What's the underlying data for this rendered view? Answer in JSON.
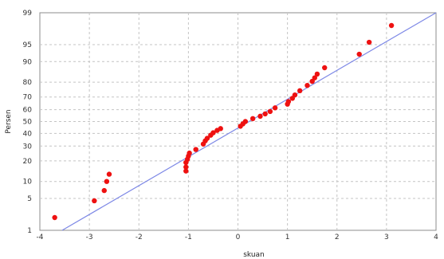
{
  "chart_data": {
    "type": "scatter",
    "title": "",
    "xlabel": "skuan",
    "ylabel": "Persen",
    "xlim": [
      -4,
      4
    ],
    "x_ticks": [
      -4,
      -3,
      -2,
      -1,
      0,
      1,
      2,
      3,
      4
    ],
    "y_ticks": [
      1,
      5,
      10,
      20,
      30,
      40,
      50,
      60,
      70,
      80,
      90,
      95,
      99
    ],
    "y_scale": "normal-probability",
    "grid": true,
    "grid_style": "dashed",
    "legend": "none",
    "point_color": "#ee1111",
    "line_color": "#7d88e6",
    "fit_line": {
      "x": [
        -3.55,
        4.0
      ],
      "y": [
        1,
        99
      ]
    },
    "series": [
      {
        "points": [
          [
            -3.7,
            2.0
          ],
          [
            -2.9,
            4.5
          ],
          [
            -2.7,
            7.0
          ],
          [
            -2.65,
            10.0
          ],
          [
            -2.6,
            13.0
          ],
          [
            -1.05,
            14.5
          ],
          [
            -1.05,
            16.5
          ],
          [
            -1.05,
            19.0
          ],
          [
            -1.02,
            21.0
          ],
          [
            -1.0,
            23.0
          ],
          [
            -0.98,
            25.0
          ],
          [
            -0.85,
            27.5
          ],
          [
            -0.7,
            31.5
          ],
          [
            -0.66,
            34.0
          ],
          [
            -0.62,
            36.0
          ],
          [
            -0.55,
            38.5
          ],
          [
            -0.5,
            40.5
          ],
          [
            -0.42,
            42.5
          ],
          [
            -0.35,
            44.0
          ],
          [
            0.05,
            46.0
          ],
          [
            0.1,
            48.0
          ],
          [
            0.15,
            50.0
          ],
          [
            0.3,
            52.5
          ],
          [
            0.45,
            54.5
          ],
          [
            0.55,
            56.5
          ],
          [
            0.65,
            58.5
          ],
          [
            0.75,
            61.5
          ],
          [
            1.0,
            64.5
          ],
          [
            1.02,
            66.5
          ],
          [
            1.1,
            69.0
          ],
          [
            1.15,
            71.5
          ],
          [
            1.25,
            74.5
          ],
          [
            1.4,
            78.0
          ],
          [
            1.5,
            80.5
          ],
          [
            1.55,
            82.5
          ],
          [
            1.6,
            84.5
          ],
          [
            1.75,
            87.5
          ],
          [
            2.45,
            92.5
          ],
          [
            2.65,
            95.5
          ],
          [
            3.1,
            98.0
          ]
        ]
      }
    ]
  }
}
